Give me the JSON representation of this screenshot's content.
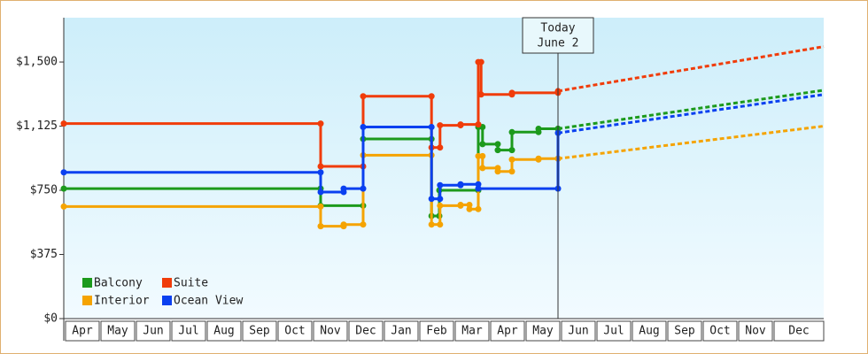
{
  "chart_data": {
    "type": "step",
    "months": [
      "Apr",
      "May",
      "Jun",
      "Jul",
      "Aug",
      "Sep",
      "Oct",
      "Nov",
      "Dec",
      "Jan",
      "Feb",
      "Mar",
      "Apr",
      "May",
      "Jun",
      "Jul",
      "Aug",
      "Sep",
      "Oct",
      "Nov",
      "Dec"
    ],
    "xlim": [
      0,
      21.45
    ],
    "ylim": [
      0,
      1759
    ],
    "yticks": [
      {
        "value": 0,
        "label": "$0"
      },
      {
        "value": 375,
        "label": "$375"
      },
      {
        "value": 750,
        "label": "$750"
      },
      {
        "value": 1125,
        "label": "$1,125"
      },
      {
        "value": 1500,
        "label": "$1,500"
      }
    ],
    "annotation": {
      "x": 13.95,
      "lines": [
        "Today",
        "June 2"
      ]
    },
    "series": [
      {
        "name": "Balcony",
        "color": "#1c9a1c",
        "x": [
          0,
          7.25,
          8.45,
          10.38,
          10.6,
          11.7,
          11.82,
          12.25,
          12.65,
          13.4,
          13.95
        ],
        "values": [
          760,
          660,
          1050,
          600,
          750,
          1120,
          1020,
          985,
          1090,
          1110,
          1110
        ],
        "projected": {
          "x": 21.45,
          "value": 1335
        }
      },
      {
        "name": "Suite",
        "color": "#f03c0a",
        "x": [
          0,
          7.25,
          8.45,
          10.38,
          10.62,
          11.2,
          11.7,
          11.78,
          12.65,
          13.95
        ],
        "values": [
          1140,
          890,
          1300,
          1000,
          1130,
          1135,
          1500,
          1310,
          1320,
          1330
        ],
        "projected": {
          "x": 21.45,
          "value": 1590
        }
      },
      {
        "name": "Interior",
        "color": "#f5a300",
        "x": [
          0,
          7.25,
          7.9,
          8.45,
          10.38,
          10.62,
          11.2,
          11.45,
          11.7,
          11.82,
          12.25,
          12.65,
          13.4,
          13.95
        ],
        "values": [
          655,
          540,
          550,
          955,
          550,
          660,
          665,
          640,
          950,
          880,
          860,
          930,
          935,
          935
        ],
        "projected": {
          "x": 21.45,
          "value": 1125
        }
      },
      {
        "name": "Ocean View",
        "color": "#0a40f0",
        "x": [
          0,
          7.25,
          7.9,
          8.45,
          10.38,
          10.62,
          11.2,
          11.7,
          13.95
        ],
        "values": [
          855,
          740,
          760,
          1120,
          700,
          780,
          785,
          760,
          1085
        ],
        "projected": {
          "x": 21.45,
          "value": 1310
        }
      }
    ]
  }
}
